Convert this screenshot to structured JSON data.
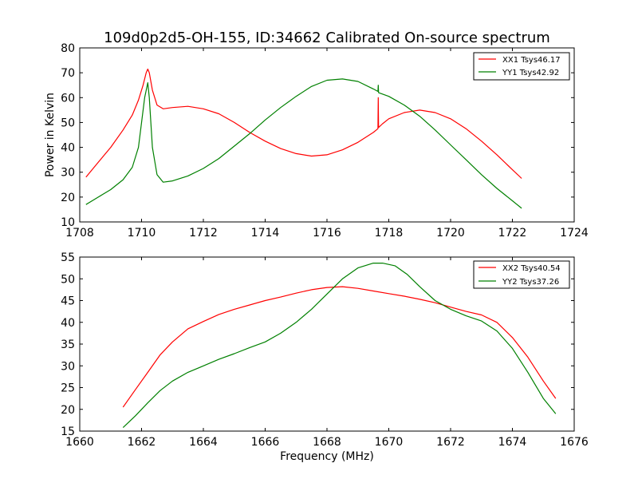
{
  "chart_data": [
    {
      "type": "line",
      "title": "109d0p2d5-OH-155, ID:34662 Calibrated On-source spectrum",
      "xlabel": "",
      "ylabel": "Power in Kelvin",
      "xlim": [
        1708,
        1724
      ],
      "ylim": [
        10,
        80
      ],
      "xticks": [
        "1708",
        "1710",
        "1712",
        "1714",
        "1716",
        "1718",
        "1720",
        "1722",
        "1724"
      ],
      "yticks": [
        "10",
        "20",
        "30",
        "40",
        "50",
        "60",
        "70",
        "80"
      ],
      "legend": "top-right",
      "series": [
        {
          "name": "XX1 Tsys46.17",
          "color": "#ff0000",
          "x": [
            1708.2,
            1708.6,
            1709.0,
            1709.4,
            1709.7,
            1709.9,
            1710.05,
            1710.15,
            1710.2,
            1710.25,
            1710.35,
            1710.5,
            1710.7,
            1711.0,
            1711.5,
            1712.0,
            1712.5,
            1713.0,
            1713.5,
            1714.0,
            1714.5,
            1715.0,
            1715.5,
            1716.0,
            1716.5,
            1717.0,
            1717.5,
            1717.65,
            1717.66,
            1717.67,
            1717.8,
            1718.0,
            1718.5,
            1719.0,
            1719.5,
            1720.0,
            1720.5,
            1721.0,
            1721.5,
            1722.0,
            1722.3
          ],
          "y": [
            28,
            34,
            40,
            47,
            53,
            59,
            65,
            70,
            71.5,
            70,
            63,
            57,
            55.5,
            56,
            56.5,
            55.5,
            53.5,
            50,
            46,
            42.5,
            39.5,
            37.5,
            36.5,
            37,
            39,
            42,
            46,
            47.5,
            60,
            48,
            49.5,
            51.5,
            54,
            55,
            54,
            51.5,
            47.5,
            42.5,
            37,
            31,
            27.5
          ]
        },
        {
          "name": "YY1 Tsys42.92",
          "color": "#008000",
          "x": [
            1708.2,
            1708.6,
            1709.0,
            1709.4,
            1709.7,
            1709.9,
            1710.0,
            1710.1,
            1710.2,
            1710.25,
            1710.35,
            1710.5,
            1710.7,
            1711.0,
            1711.5,
            1712.0,
            1712.5,
            1713.0,
            1713.5,
            1714.0,
            1714.5,
            1715.0,
            1715.5,
            1716.0,
            1716.5,
            1717.0,
            1717.5,
            1717.65,
            1717.66,
            1717.67,
            1718.0,
            1718.5,
            1719.0,
            1719.5,
            1720.0,
            1720.5,
            1721.0,
            1721.5,
            1722.0,
            1722.3
          ],
          "y": [
            17,
            20,
            23,
            27,
            32,
            40,
            50,
            60,
            66,
            60,
            40,
            29,
            26,
            26.5,
            28.5,
            31.5,
            35.5,
            40.5,
            45.5,
            51,
            56,
            60.5,
            64.5,
            67,
            67.5,
            66.5,
            63.5,
            62.5,
            65,
            62,
            60.5,
            57,
            52.5,
            47,
            41,
            35,
            29,
            23.5,
            18.5,
            15.5
          ]
        }
      ]
    },
    {
      "type": "line",
      "title": "",
      "xlabel": "Frequency (MHz)",
      "ylabel": "",
      "xlim": [
        1660,
        1676
      ],
      "ylim": [
        15,
        55
      ],
      "xticks": [
        "1660",
        "1662",
        "1664",
        "1666",
        "1668",
        "1670",
        "1672",
        "1674",
        "1676"
      ],
      "yticks": [
        "15",
        "20",
        "25",
        "30",
        "35",
        "40",
        "45",
        "50",
        "55"
      ],
      "legend": "top-right",
      "series": [
        {
          "name": "XX2 Tsys40.54",
          "color": "#ff0000",
          "x": [
            1661.4,
            1661.8,
            1662.2,
            1662.6,
            1663.0,
            1663.5,
            1664.0,
            1664.5,
            1665.0,
            1665.5,
            1666.0,
            1666.5,
            1667.0,
            1667.5,
            1668.0,
            1668.5,
            1669.0,
            1669.5,
            1670.0,
            1670.5,
            1671.0,
            1671.5,
            1672.0,
            1672.5,
            1673.0,
            1673.5,
            1674.0,
            1674.5,
            1675.0,
            1675.4
          ],
          "y": [
            20.5,
            24.5,
            28.5,
            32.5,
            35.5,
            38.5,
            40.2,
            41.8,
            43,
            44,
            45,
            45.8,
            46.7,
            47.5,
            48,
            48.2,
            47.8,
            47.2,
            46.6,
            46,
            45.3,
            44.5,
            43.5,
            42.5,
            41.7,
            40,
            36.5,
            32,
            26.5,
            22.5
          ]
        },
        {
          "name": "YY2 Tsys37.26",
          "color": "#008000",
          "x": [
            1661.4,
            1661.8,
            1662.2,
            1662.6,
            1663.0,
            1663.5,
            1664.0,
            1664.5,
            1665.0,
            1665.5,
            1666.0,
            1666.5,
            1667.0,
            1667.5,
            1668.0,
            1668.5,
            1669.0,
            1669.5,
            1669.8,
            1670.2,
            1670.6,
            1671.0,
            1671.5,
            1672.0,
            1672.5,
            1673.0,
            1673.5,
            1674.0,
            1674.5,
            1675.0,
            1675.4
          ],
          "y": [
            15.8,
            18.5,
            21.5,
            24.3,
            26.5,
            28.5,
            30,
            31.5,
            32.8,
            34.2,
            35.5,
            37.5,
            40,
            43,
            46.5,
            50,
            52.5,
            53.6,
            53.6,
            53,
            51,
            48.2,
            45,
            43,
            41.5,
            40.3,
            38,
            34,
            28.5,
            22.5,
            19
          ]
        }
      ]
    }
  ]
}
